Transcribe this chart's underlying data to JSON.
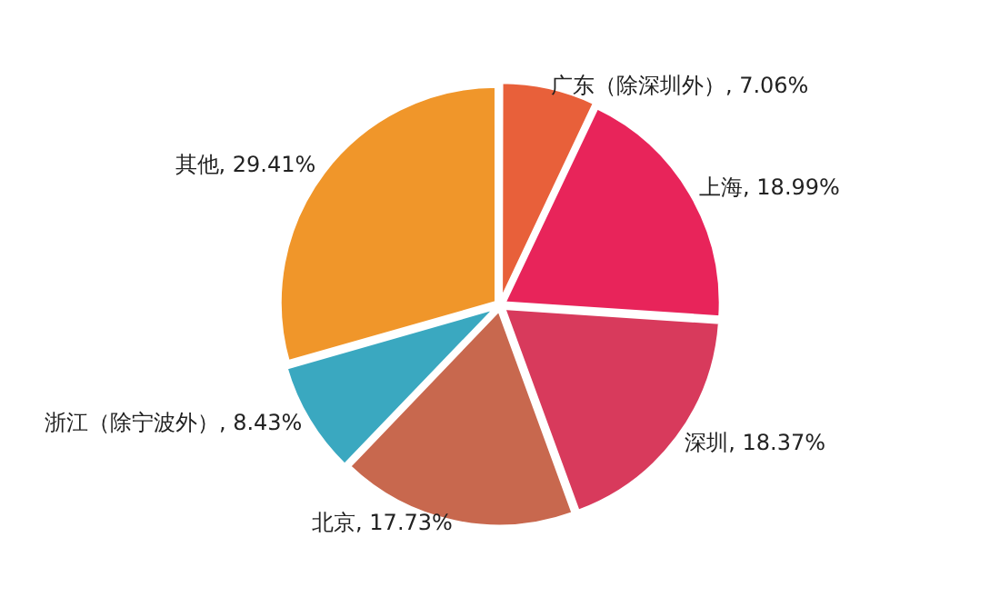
{
  "chart_data": {
    "type": "pie",
    "categories": [
      "广东（除深圳外）",
      "上海",
      "深圳",
      "北京",
      "浙江（除宁波外）",
      "其他"
    ],
    "values": [
      7.06,
      18.99,
      18.37,
      17.73,
      8.43,
      29.41
    ],
    "value_labels": [
      "7.06%",
      "18.99%",
      "18.37%",
      "17.73%",
      "8.43%",
      "29.41%"
    ],
    "colors": [
      "#e8603a",
      "#e8245a",
      "#d83a5c",
      "#c8684e",
      "#3aa8c0",
      "#f0962a"
    ],
    "legend": false
  }
}
